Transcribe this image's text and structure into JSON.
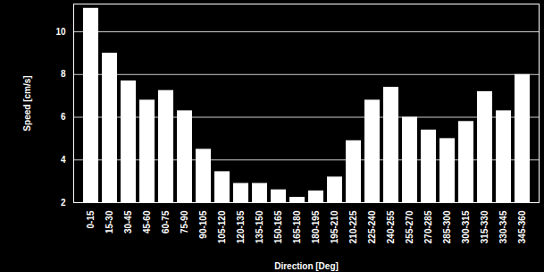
{
  "chart_data": {
    "type": "bar",
    "x_label": "Direction [Deg]",
    "y_label": "Speed [cm/s]",
    "categories": [
      "0-15",
      "15-30",
      "30-45",
      "45-60",
      "60-75",
      "75-90",
      "90-105",
      "105-120",
      "120-135",
      "135-150",
      "150-165",
      "165-180",
      "180-195",
      "195-210",
      "210-225",
      "225-240",
      "240-255",
      "255-270",
      "270-285",
      "285-300",
      "300-315",
      "315-330",
      "330-345",
      "345-360"
    ],
    "values": [
      11.1,
      9.0,
      7.7,
      6.8,
      7.25,
      6.3,
      4.5,
      3.45,
      2.9,
      2.9,
      2.6,
      2.25,
      2.55,
      3.2,
      4.9,
      6.8,
      7.4,
      6.0,
      5.4,
      5.0,
      5.8,
      7.2,
      6.3,
      8.0
    ],
    "color": "#ffffff",
    "ylim": [
      2,
      11.3
    ],
    "yticks": [
      2,
      4,
      6,
      8,
      10
    ],
    "grid": true
  }
}
